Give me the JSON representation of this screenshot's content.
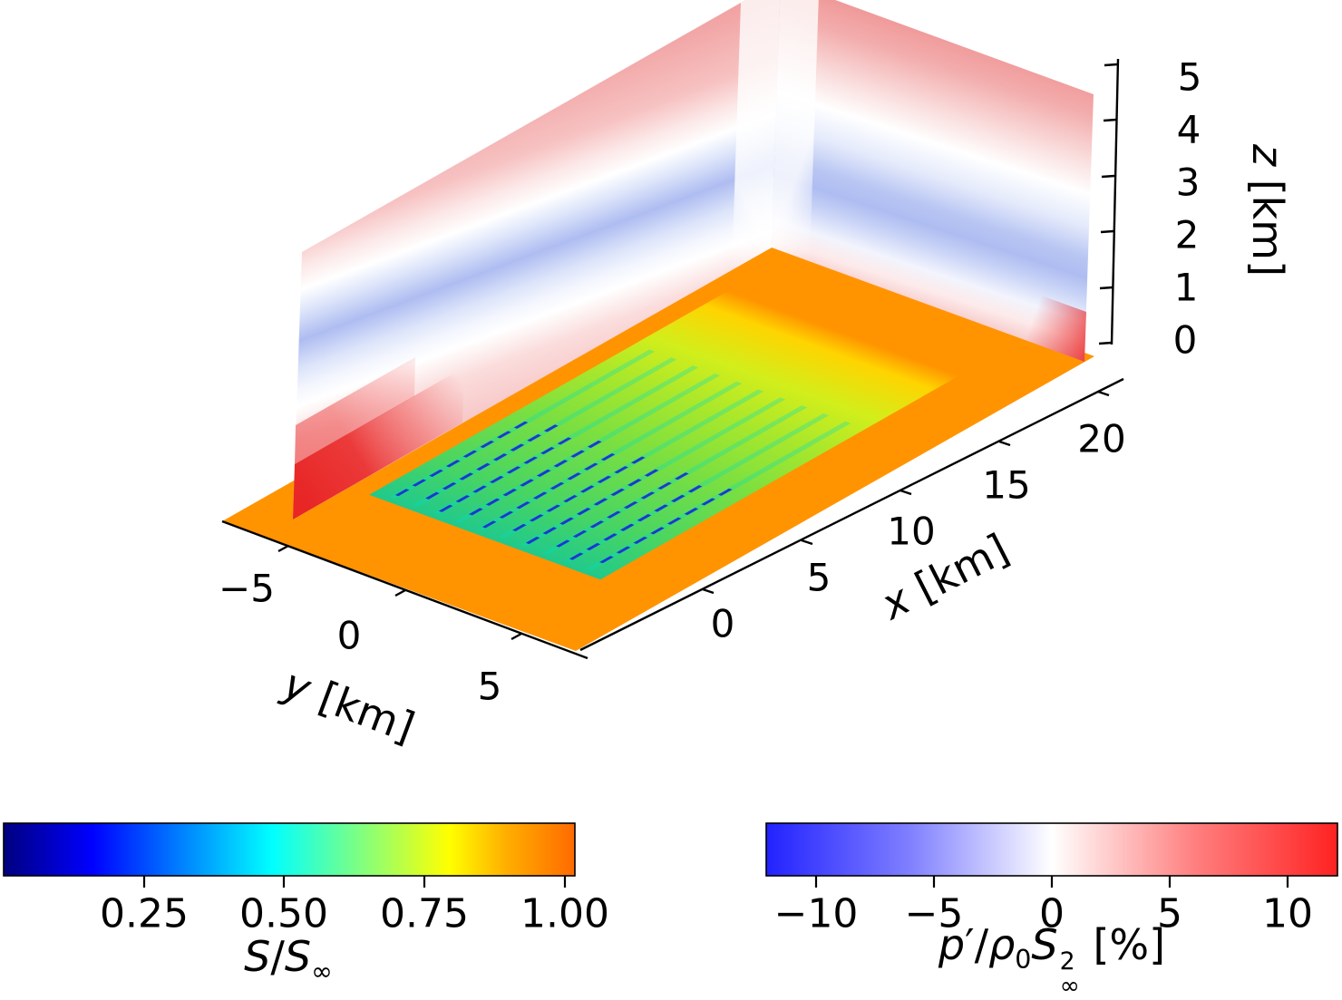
{
  "scene": {
    "axes": {
      "x": {
        "label_var": "x",
        "label_unit": " [km]",
        "tick_labels": [
          "0",
          "5",
          "10",
          "15",
          "20"
        ]
      },
      "y": {
        "label_var": "y",
        "label_unit": " [km]",
        "tick_labels": [
          "−5",
          "0",
          "5"
        ]
      },
      "z": {
        "label_var": "z",
        "label_unit": " [km]",
        "tick_labels": [
          "5",
          "4",
          "3",
          "2",
          "1",
          "0"
        ]
      }
    }
  },
  "colorbars": {
    "speed": {
      "tick_labels": [
        "0.25",
        "0.50",
        "0.75",
        "1.00"
      ],
      "label": {
        "numerator": "S",
        "slash": "/",
        "denominator": "S",
        "subscript": "∞"
      },
      "gradient_stops": [
        [
          0,
          "#000080"
        ],
        [
          0.155,
          "#0000ff"
        ],
        [
          0.31,
          "#0080ff"
        ],
        [
          0.47,
          "#00ffff"
        ],
        [
          0.625,
          "#80ff80"
        ],
        [
          0.78,
          "#ffff00"
        ],
        [
          0.88,
          "#ffae00"
        ],
        [
          1,
          "#ff6a00"
        ]
      ]
    },
    "pressure": {
      "tick_labels": [
        "−10",
        "−5",
        "0",
        "5",
        "10"
      ],
      "label": {
        "p": "p",
        "prime": "′",
        "slash": "/",
        "rho": "ρ",
        "rho_sub": "0",
        "s": "S",
        "s_sub": "∞",
        "s_sup": "2",
        "unit": " [%]"
      },
      "gradient_stops": [
        [
          0,
          "#2222ff"
        ],
        [
          0.25,
          "#7f7fff"
        ],
        [
          0.5,
          "#ffffff"
        ],
        [
          0.75,
          "#ff7f7f"
        ],
        [
          1,
          "#ff2222"
        ]
      ]
    }
  },
  "chart_data": {
    "type": "heatmap",
    "subtype": "3d_slice_visualization_wind_farm_flow",
    "title": "",
    "axis_ranges": {
      "x_km": [
        0,
        20
      ],
      "y_km": [
        -5,
        5
      ],
      "z_km": [
        0,
        5
      ]
    },
    "axis_ticks": {
      "x": [
        0,
        5,
        10,
        15,
        20
      ],
      "y": [
        -5,
        0,
        5
      ],
      "z": [
        0,
        1,
        2,
        3,
        4,
        5
      ]
    },
    "slices": {
      "horizontal_z0": {
        "field": "S/S∞",
        "colormap": "jet-like navy→blue→cyan→green→yellow→orange",
        "colorbar_ticks": [
          0.25,
          0.5,
          0.75,
          1.0
        ],
        "freestream_value": 1.0,
        "wake_minimum": 0.15,
        "description": "orange freestream plane with green/cyan wind-farm wake region and navy turbine-wake dashes extending downstream"
      },
      "vertical_pressure_walls": {
        "field": "p′/ρ₀S∞² [%]",
        "colormap": "blue-white-red",
        "colorbar_ticks": [
          -10,
          -5,
          0,
          5,
          10
        ],
        "description": "positive (red) band aloft above ~3 km and strong positive near the surface upstream of the farm; negative (blue) layer between ~1.5 and 3 km; walls along far y side and far x end meeting at a pale corner seam"
      }
    },
    "wind_farm": {
      "rows": 10,
      "cols": 8,
      "x_start": 2.3,
      "col_spacing": 0.85,
      "y_start": -3.6,
      "row_spacing": 0.8,
      "stagger": 0.42,
      "dash_length": 0.55,
      "dash_thickness": 0.12,
      "dash_color": "#1b2fd0",
      "streak_length": 13.0,
      "streak_thickness": 0.2,
      "streak_color": "#00e0c0",
      "base_region": {
        "x": [
          1.8,
          19.8
        ],
        "y": [
          -4.25,
          4.25
        ]
      }
    },
    "scene_colors": {
      "floor_freestream": "#ff9400",
      "wall_red_band": "#f09898",
      "wall_blue_band": "#aebcf1",
      "wall_ground_high_pressure": "#e71919"
    }
  }
}
